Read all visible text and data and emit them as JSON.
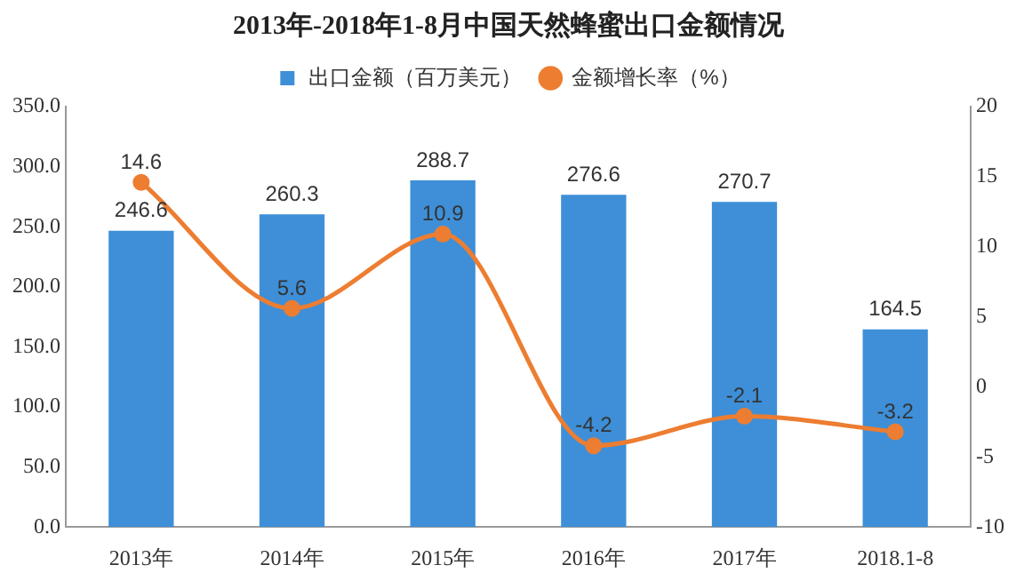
{
  "chart_data": {
    "type": "bar",
    "title": "2013年-2018年1-8月中国天然蜂蜜出口金额情况",
    "categories": [
      "2013年",
      "2014年",
      "2015年",
      "2016年",
      "2017年",
      "2018.1-8"
    ],
    "series": [
      {
        "name": "出口金额（百万美元）",
        "color": "#3e8fd8",
        "values": [
          246.6,
          260.3,
          288.7,
          276.6,
          270.7,
          164.5
        ]
      },
      {
        "name": "金额增长率（%）",
        "type": "line",
        "axis": "y2",
        "color": "#ed7d31",
        "marker": "circle",
        "values": [
          14.6,
          5.6,
          10.9,
          -4.2,
          -2.1,
          -3.2
        ]
      }
    ],
    "ylim": [
      0,
      350
    ],
    "yticks": [
      {
        "value": 0,
        "label": "0.0"
      },
      {
        "value": 50,
        "label": "50.0"
      },
      {
        "value": 100,
        "label": "100.0"
      },
      {
        "value": 150,
        "label": "150.0"
      },
      {
        "value": 200,
        "label": "200.0"
      },
      {
        "value": 250,
        "label": "250.0"
      },
      {
        "value": 300,
        "label": "300.0"
      },
      {
        "value": 350,
        "label": "350.0"
      }
    ],
    "y2lim": [
      -10,
      20
    ],
    "y2ticks": [
      -10,
      -5,
      0,
      5,
      10,
      15,
      20
    ],
    "legend": "top",
    "data_labels": true
  }
}
